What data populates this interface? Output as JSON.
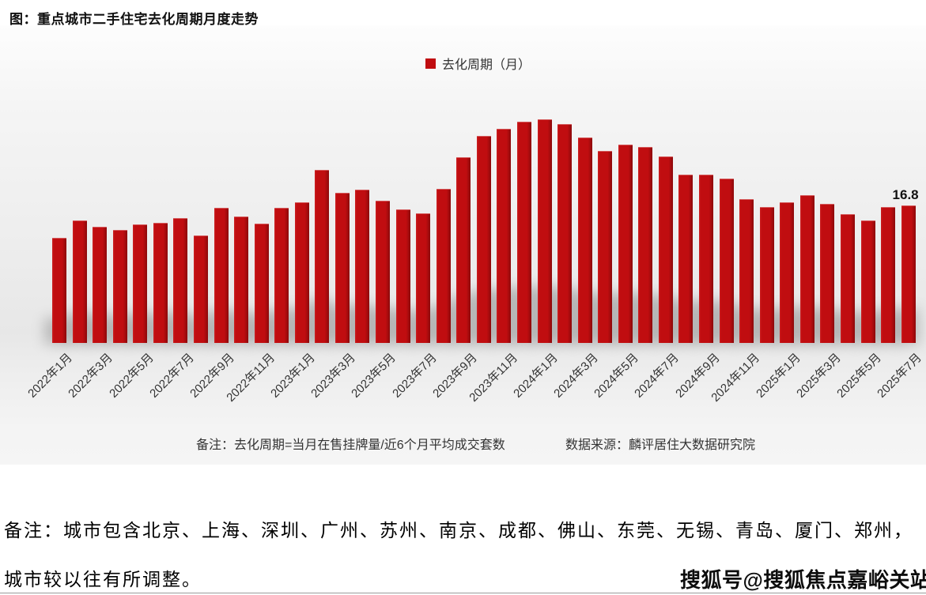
{
  "title": "图：重点城市二手住宅去化周期月度走势",
  "legend": {
    "label": "去化周期（月）",
    "color": "#c00d10"
  },
  "chart_data": {
    "type": "bar",
    "title": "重点城市二手住宅去化周期月度走势",
    "series_name": "去化周期（月）",
    "unit": "月",
    "bar_color": "#c00d10",
    "grid": false,
    "legend_position": "top",
    "ylim": [
      0,
      28
    ],
    "x_tick_interval": 2,
    "categories": [
      "2022年1月",
      "2022年2月",
      "2022年3月",
      "2022年4月",
      "2022年5月",
      "2022年6月",
      "2022年7月",
      "2022年8月",
      "2022年9月",
      "2022年10月",
      "2022年11月",
      "2022年12月",
      "2023年1月",
      "2023年2月",
      "2023年3月",
      "2023年4月",
      "2023年5月",
      "2023年6月",
      "2023年7月",
      "2023年8月",
      "2023年9月",
      "2023年10月",
      "2023年11月",
      "2023年12月",
      "2024年1月",
      "2024年2月",
      "2024年3月",
      "2024年4月",
      "2024年5月",
      "2024年6月",
      "2024年7月",
      "2024年8月",
      "2024年9月",
      "2024年10月",
      "2024年11月",
      "2024年12月",
      "2025年1月",
      "2025年2月",
      "2025年3月",
      "2025年4月",
      "2025年5月",
      "2025年6月",
      "2025年7月"
    ],
    "values": [
      12.9,
      15.0,
      14.2,
      13.8,
      14.5,
      14.7,
      15.3,
      13.2,
      16.5,
      15.5,
      14.6,
      16.5,
      17.2,
      21.2,
      18.4,
      18.8,
      17.4,
      16.3,
      15.9,
      18.9,
      22.7,
      25.3,
      26.2,
      27.1,
      27.4,
      26.8,
      25.1,
      23.5,
      24.3,
      24.0,
      22.8,
      20.6,
      20.6,
      20.1,
      17.6,
      16.6,
      17.2,
      18.1,
      17.0,
      15.8,
      15.0,
      16.6,
      16.8
    ],
    "annotation": {
      "category": "2025年7月",
      "index": 42,
      "text": "16.8"
    }
  },
  "footnote": {
    "left": "备注：去化周期=当月在售挂牌量/近6个月平均成交套数",
    "right": "数据来源：麟评居住大数据研究院"
  },
  "bottom_note": {
    "line1": "备注：城市包含北京、上海、深圳、广州、苏州、南京、成都、佛山、东莞、无锡、青岛、厦门、郑州，",
    "line2": "城市较以往有所调整。"
  },
  "watermark": "搜狐号@搜狐焦点嘉峪关站"
}
